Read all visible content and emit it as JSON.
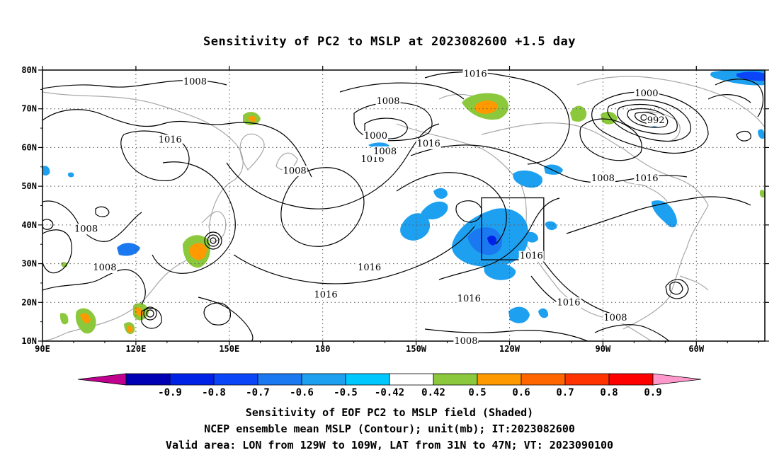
{
  "title": "Sensitivity of PC2 to MSLP at 2023082600 +1.5 day",
  "map": {
    "lat_labels": [
      "80N",
      "70N",
      "60N",
      "50N",
      "40N",
      "30N",
      "20N",
      "10N"
    ],
    "lat_values": [
      80,
      70,
      60,
      50,
      40,
      30,
      20,
      10
    ],
    "lon_labels": [
      "90E",
      "120E",
      "150E",
      "180",
      "150W",
      "120W",
      "90W",
      "60W"
    ],
    "lon_values": [
      90,
      120,
      150,
      180,
      210,
      240,
      270,
      300
    ],
    "lon_range": [
      90,
      322
    ],
    "lat_range": [
      10,
      80
    ],
    "valid_box": {
      "lon": [
        231,
        251
      ],
      "lat": [
        31,
        47
      ]
    },
    "contour_labels": [
      {
        "text": "1008",
        "lon": 139,
        "lat": 77
      },
      {
        "text": "1016",
        "lon": 131,
        "lat": 62
      },
      {
        "text": "1008",
        "lon": 104,
        "lat": 39
      },
      {
        "text": "1008",
        "lon": 110,
        "lat": 29
      },
      {
        "text": "1008",
        "lon": 171,
        "lat": 54
      },
      {
        "text": "1016",
        "lon": 196,
        "lat": 57
      },
      {
        "text": "1008",
        "lon": 201,
        "lat": 72
      },
      {
        "text": "1000",
        "lon": 197,
        "lat": 63
      },
      {
        "text": "1008",
        "lon": 200,
        "lat": 59
      },
      {
        "text": "1016",
        "lon": 214,
        "lat": 61
      },
      {
        "text": "1016",
        "lon": 229,
        "lat": 79
      },
      {
        "text": "1000",
        "lon": 284,
        "lat": 74
      },
      {
        "text": "992",
        "lon": 287,
        "lat": 67
      },
      {
        "text": "1008",
        "lon": 270,
        "lat": 52
      },
      {
        "text": "1016",
        "lon": 284,
        "lat": 52
      },
      {
        "text": "1016",
        "lon": 247,
        "lat": 32
      },
      {
        "text": "1016",
        "lon": 195,
        "lat": 29
      },
      {
        "text": "1016",
        "lon": 181,
        "lat": 22
      },
      {
        "text": "1016",
        "lon": 227,
        "lat": 21
      },
      {
        "text": "1016",
        "lon": 259,
        "lat": 20
      },
      {
        "text": "1008",
        "lon": 274,
        "lat": 16
      },
      {
        "text": "1008",
        "lon": 226,
        "lat": 10
      }
    ]
  },
  "colorbar": {
    "labels": [
      "-0.9",
      "-0.8",
      "-0.7",
      "-0.6",
      "-0.5",
      "-0.42",
      "0.42",
      "0.5",
      "0.6",
      "0.7",
      "0.8",
      "0.9"
    ],
    "colors": [
      "#c0008f",
      "#0000b4",
      "#0022e6",
      "#0a46f8",
      "#1a78f0",
      "#1ea0f0",
      "#00c8ff",
      "#ffffff",
      "#8cc83c",
      "#ff9900",
      "#ff6600",
      "#ff3300",
      "#ff0000",
      "#ff99cc"
    ]
  },
  "captions": [
    "Sensitivity of EOF PC2 to MSLP field (Shaded)",
    "NCEP ensemble mean MSLP (Contour); unit(mb); IT:2023082600",
    "Valid area: LON from 129W to 109W, LAT from 31N to 47N; VT: 2023090100"
  ]
}
